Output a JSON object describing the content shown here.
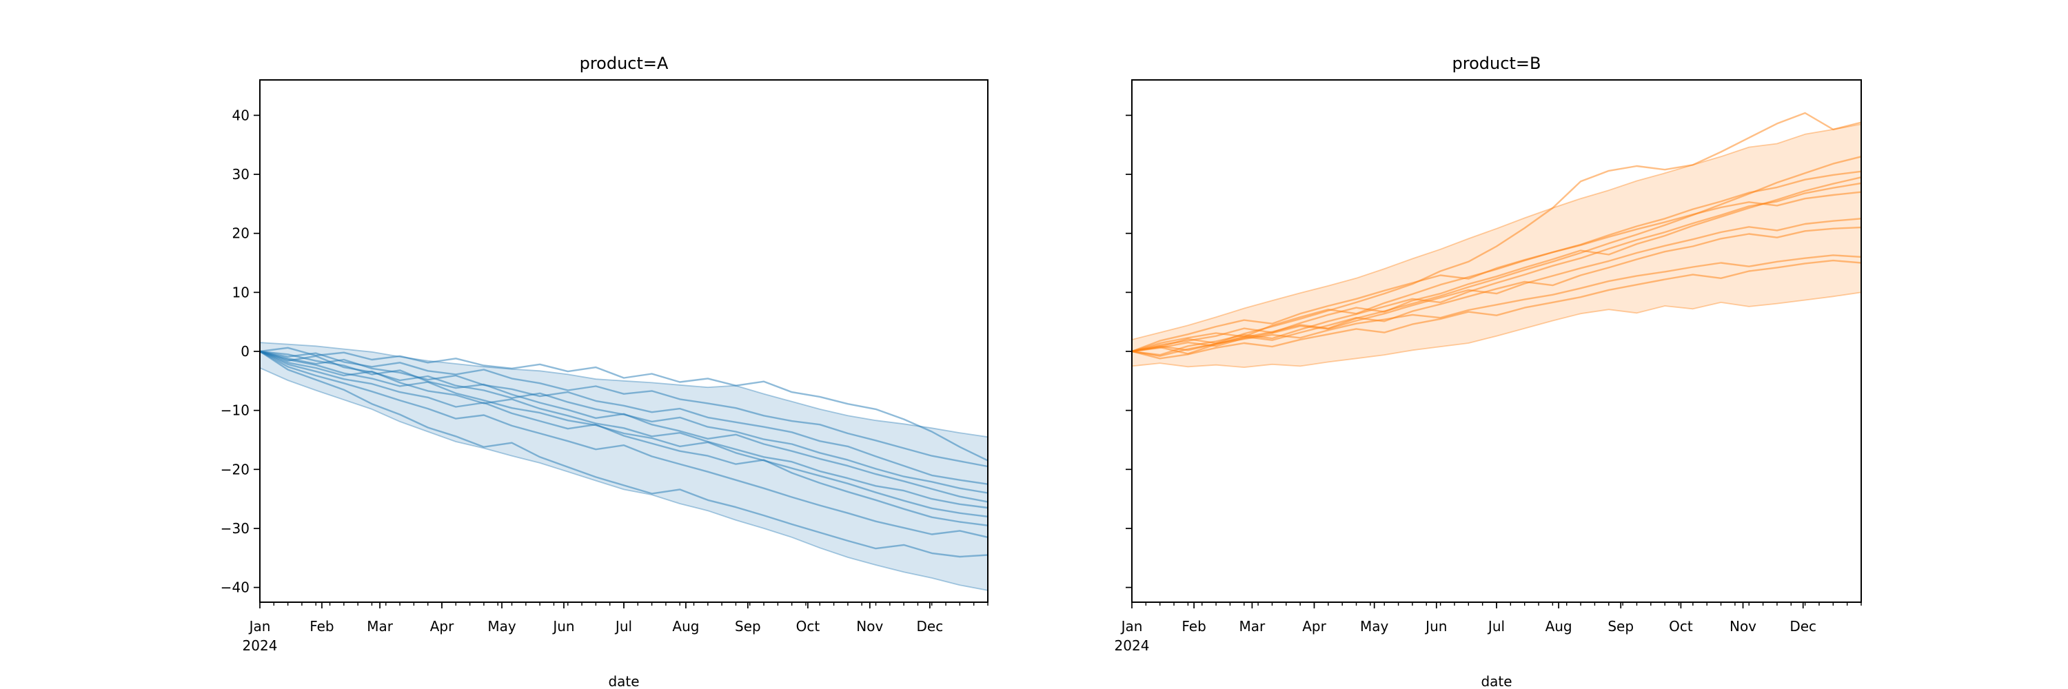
{
  "figure": {
    "background": "#ffffff",
    "n_facets": 2,
    "shared_y_axis": true
  },
  "chart_data": [
    {
      "type": "line",
      "title": "product=A",
      "xlabel": "date",
      "x_axis": {
        "unit": "date",
        "year_label": "2024",
        "month_tick_labels": [
          "Jan",
          "Feb",
          "Mar",
          "Apr",
          "May",
          "Jun",
          "Jul",
          "Aug",
          "Sep",
          "Oct",
          "Nov",
          "Dec"
        ],
        "month_tick_days": [
          0,
          31,
          60,
          91,
          121,
          152,
          182,
          213,
          244,
          274,
          305,
          335
        ],
        "minor_tick_step_days": 7,
        "x_max_day": 364
      },
      "y_axis": {
        "tick_values": [
          40,
          30,
          20,
          10,
          0,
          -10,
          -20,
          -30,
          -40
        ],
        "tick_labels": [
          "40",
          "30",
          "20",
          "10",
          "0",
          "−10",
          "−20",
          "−30",
          "−40"
        ],
        "ylim": [
          -42.5,
          46.0
        ],
        "show_tick_labels": true
      },
      "color": {
        "base": "#1f77b4",
        "line": "rgba(31,119,180,0.5)",
        "band_fill": "rgba(31,119,180,0.18)",
        "band_edge": "rgba(31,119,180,0.38)"
      },
      "x_days": [
        0,
        14,
        28,
        42,
        56,
        70,
        84,
        98,
        112,
        126,
        140,
        154,
        168,
        182,
        196,
        210,
        224,
        238,
        252,
        266,
        280,
        294,
        308,
        322,
        336,
        350,
        364
      ],
      "band": {
        "upper": [
          1.5,
          1.2,
          0.9,
          0.4,
          -0.1,
          -0.9,
          -1.6,
          -2.1,
          -2.6,
          -3.0,
          -3.3,
          -3.9,
          -4.7,
          -5.0,
          -5.3,
          -5.7,
          -6.1,
          -5.8,
          -7.2,
          -8.5,
          -9.8,
          -10.9,
          -11.7,
          -12.3,
          -13.0,
          -13.8,
          -14.5
        ],
        "lower": [
          -2.8,
          -4.9,
          -6.6,
          -8.2,
          -9.8,
          -11.9,
          -13.6,
          -15.3,
          -16.4,
          -17.7,
          -18.9,
          -20.4,
          -21.9,
          -23.4,
          -24.3,
          -25.8,
          -27.0,
          -28.6,
          -30.0,
          -31.5,
          -33.3,
          -34.9,
          -36.2,
          -37.4,
          -38.4,
          -39.6,
          -40.5
        ]
      },
      "series": [
        {
          "values": [
            0.0,
            0.6,
            -0.7,
            -0.2,
            -1.4,
            -0.8,
            -1.9,
            -1.2,
            -2.4,
            -2.9,
            -2.2,
            -3.4,
            -2.7,
            -4.5,
            -3.8,
            -5.2,
            -4.6,
            -5.8,
            -5.1,
            -6.9,
            -7.7,
            -8.9,
            -9.8,
            -11.5,
            -13.6,
            -16.2,
            -18.5
          ]
        },
        {
          "values": [
            0.0,
            -0.9,
            -0.3,
            -1.8,
            -2.6,
            -1.9,
            -3.3,
            -3.9,
            -3.1,
            -4.6,
            -5.4,
            -6.6,
            -5.9,
            -7.2,
            -6.7,
            -8.1,
            -8.8,
            -9.6,
            -10.9,
            -11.8,
            -12.4,
            -13.9,
            -15.1,
            -16.4,
            -17.7,
            -18.6,
            -19.5
          ]
        },
        {
          "values": [
            0.0,
            -1.2,
            -2.1,
            -1.4,
            -2.9,
            -3.6,
            -4.8,
            -4.1,
            -5.7,
            -6.4,
            -7.6,
            -6.9,
            -8.4,
            -9.2,
            -10.3,
            -9.7,
            -11.2,
            -12.0,
            -12.8,
            -13.7,
            -15.2,
            -16.1,
            -17.8,
            -19.4,
            -21.0,
            -21.8,
            -22.5
          ]
        },
        {
          "values": [
            0.0,
            -1.6,
            -0.8,
            -2.7,
            -3.5,
            -4.9,
            -4.2,
            -5.8,
            -6.6,
            -7.9,
            -7.1,
            -8.6,
            -9.8,
            -10.7,
            -11.9,
            -11.2,
            -12.8,
            -13.6,
            -14.9,
            -15.7,
            -17.2,
            -18.4,
            -19.9,
            -21.2,
            -22.1,
            -23.2,
            -24.0
          ]
        },
        {
          "values": [
            0.0,
            -0.5,
            -1.6,
            -2.4,
            -3.9,
            -3.2,
            -5.1,
            -6.2,
            -5.6,
            -7.3,
            -8.7,
            -9.9,
            -11.3,
            -10.6,
            -12.4,
            -13.5,
            -14.8,
            -14.1,
            -15.7,
            -16.9,
            -18.2,
            -19.4,
            -20.8,
            -22.0,
            -23.3,
            -24.6,
            -25.5
          ]
        },
        {
          "values": [
            0.0,
            -1.9,
            -2.8,
            -4.1,
            -3.4,
            -5.3,
            -6.7,
            -7.4,
            -8.8,
            -8.1,
            -9.7,
            -10.9,
            -12.2,
            -13.0,
            -14.4,
            -13.8,
            -15.3,
            -16.6,
            -17.9,
            -18.7,
            -20.3,
            -21.5,
            -22.8,
            -23.6,
            -25.0,
            -25.9,
            -26.5
          ]
        },
        {
          "values": [
            0.0,
            -1.4,
            -2.3,
            -3.7,
            -4.6,
            -5.9,
            -5.2,
            -7.1,
            -8.3,
            -9.6,
            -10.4,
            -11.7,
            -12.5,
            -13.9,
            -14.7,
            -16.1,
            -15.4,
            -17.2,
            -18.5,
            -19.8,
            -21.1,
            -22.4,
            -23.9,
            -25.3,
            -26.6,
            -27.4,
            -28.0
          ]
        },
        {
          "values": [
            0.0,
            -2.2,
            -3.4,
            -4.7,
            -5.5,
            -6.9,
            -7.8,
            -9.4,
            -8.7,
            -10.5,
            -11.8,
            -13.1,
            -12.4,
            -14.3,
            -15.6,
            -16.9,
            -17.7,
            -19.1,
            -18.4,
            -20.6,
            -22.3,
            -23.8,
            -25.2,
            -26.7,
            -28.1,
            -28.9,
            -29.5
          ]
        },
        {
          "values": [
            0.0,
            -2.6,
            -4.1,
            -5.4,
            -6.8,
            -8.3,
            -9.7,
            -11.4,
            -10.8,
            -12.6,
            -13.9,
            -15.2,
            -16.6,
            -15.9,
            -17.8,
            -19.1,
            -20.4,
            -21.8,
            -23.2,
            -24.7,
            -26.1,
            -27.4,
            -28.8,
            -29.9,
            -31.0,
            -30.4,
            -31.5
          ]
        },
        {
          "values": [
            0.0,
            -3.1,
            -4.8,
            -6.5,
            -8.9,
            -10.7,
            -12.9,
            -14.4,
            -16.2,
            -15.5,
            -17.9,
            -19.6,
            -21.3,
            -22.7,
            -24.1,
            -23.4,
            -25.2,
            -26.4,
            -27.8,
            -29.3,
            -30.7,
            -32.1,
            -33.4,
            -32.8,
            -34.2,
            -34.8,
            -34.5
          ]
        }
      ]
    },
    {
      "type": "line",
      "title": "product=B",
      "xlabel": "date",
      "x_axis": {
        "unit": "date",
        "year_label": "2024",
        "month_tick_labels": [
          "Jan",
          "Feb",
          "Mar",
          "Apr",
          "May",
          "Jun",
          "Jul",
          "Aug",
          "Sep",
          "Oct",
          "Nov",
          "Dec"
        ],
        "month_tick_days": [
          0,
          31,
          60,
          91,
          121,
          152,
          182,
          213,
          244,
          274,
          305,
          335
        ],
        "minor_tick_step_days": 7,
        "x_max_day": 364
      },
      "y_axis": {
        "tick_values": [
          40,
          30,
          20,
          10,
          0,
          -10,
          -20,
          -30,
          -40
        ],
        "tick_labels": [
          "40",
          "30",
          "20",
          "10",
          "0",
          "−10",
          "−20",
          "−30",
          "−40"
        ],
        "ylim": [
          -42.5,
          46.0
        ],
        "show_tick_labels": false
      },
      "color": {
        "base": "#ff7f0e",
        "line": "rgba(255,127,14,0.5)",
        "band_fill": "rgba(255,127,14,0.18)",
        "band_edge": "rgba(255,127,14,0.38)"
      },
      "x_days": [
        0,
        14,
        28,
        42,
        56,
        70,
        84,
        98,
        112,
        126,
        140,
        154,
        168,
        182,
        196,
        210,
        224,
        238,
        252,
        266,
        280,
        294,
        308,
        322,
        336,
        350,
        364
      ],
      "band": {
        "upper": [
          2.0,
          3.2,
          4.4,
          5.8,
          7.3,
          8.6,
          9.9,
          11.1,
          12.4,
          14.0,
          15.7,
          17.3,
          19.1,
          20.8,
          22.6,
          24.3,
          25.9,
          27.3,
          28.9,
          30.2,
          31.6,
          33.0,
          34.6,
          35.2,
          36.8,
          37.6,
          38.5
        ],
        "lower": [
          -2.5,
          -2.0,
          -2.6,
          -2.3,
          -2.7,
          -2.2,
          -2.5,
          -1.8,
          -1.2,
          -0.6,
          0.2,
          0.8,
          1.4,
          2.6,
          3.9,
          5.2,
          6.4,
          7.1,
          6.5,
          7.7,
          7.2,
          8.3,
          7.6,
          8.1,
          8.7,
          9.3,
          10.0
        ]
      },
      "series": [
        {
          "values": [
            0.0,
            0.8,
            2.1,
            1.4,
            3.0,
            4.2,
            5.5,
            6.9,
            8.3,
            9.8,
            11.4,
            13.6,
            15.2,
            17.8,
            20.9,
            24.3,
            28.8,
            30.6,
            31.4,
            30.8,
            31.6,
            33.8,
            36.2,
            38.6,
            40.4,
            37.6,
            38.8
          ]
        },
        {
          "values": [
            0.0,
            0.7,
            -0.4,
            1.2,
            2.4,
            3.3,
            4.5,
            3.9,
            5.6,
            6.8,
            8.1,
            9.4,
            10.9,
            12.3,
            13.8,
            15.2,
            16.7,
            18.3,
            19.8,
            21.4,
            23.1,
            24.9,
            26.7,
            28.6,
            30.2,
            31.8,
            33.0
          ]
        },
        {
          "values": [
            0.0,
            1.4,
            2.3,
            3.1,
            2.5,
            4.4,
            5.8,
            7.1,
            6.4,
            8.2,
            9.7,
            11.3,
            12.6,
            13.9,
            15.4,
            16.8,
            18.1,
            19.7,
            21.2,
            22.5,
            24.1,
            25.4,
            26.9,
            27.8,
            29.1,
            29.9,
            30.5
          ]
        },
        {
          "values": [
            0.0,
            1.1,
            1.8,
            2.6,
            3.9,
            3.2,
            4.8,
            6.2,
            7.4,
            6.7,
            8.6,
            9.8,
            11.4,
            12.7,
            14.2,
            15.6,
            17.1,
            16.4,
            18.2,
            19.6,
            21.3,
            22.8,
            24.3,
            25.7,
            27.2,
            28.4,
            29.5
          ]
        },
        {
          "values": [
            0.0,
            -0.6,
            0.9,
            1.7,
            2.8,
            2.2,
            3.7,
            5.1,
            6.3,
            7.6,
            8.9,
            8.3,
            10.1,
            11.6,
            13.0,
            14.5,
            15.8,
            17.4,
            18.9,
            20.2,
            21.7,
            23.1,
            24.6,
            25.4,
            26.8,
            27.7,
            28.5
          ]
        },
        {
          "values": [
            0.0,
            1.8,
            2.9,
            4.2,
            5.3,
            4.7,
            6.4,
            7.7,
            8.9,
            10.3,
            11.6,
            12.9,
            12.3,
            14.1,
            15.5,
            16.8,
            18.0,
            19.4,
            20.7,
            21.9,
            23.2,
            24.4,
            25.3,
            24.7,
            25.9,
            26.5,
            27.0
          ]
        },
        {
          "values": [
            0.0,
            0.6,
            1.5,
            0.9,
            2.2,
            3.1,
            4.3,
            3.8,
            5.2,
            6.4,
            7.8,
            9.1,
            10.4,
            9.8,
            11.5,
            12.8,
            14.1,
            15.3,
            16.7,
            17.9,
            19.0,
            20.2,
            21.1,
            20.5,
            21.6,
            22.1,
            22.5
          ]
        },
        {
          "values": [
            0.0,
            -0.8,
            0.4,
            1.3,
            2.5,
            1.9,
            3.2,
            4.4,
            5.7,
            5.1,
            6.8,
            8.0,
            9.3,
            10.6,
            11.8,
            11.2,
            12.9,
            14.2,
            15.6,
            16.9,
            17.8,
            19.1,
            19.9,
            19.3,
            20.4,
            20.8,
            21.0
          ]
        },
        {
          "values": [
            0.0,
            0.9,
            0.2,
            1.3,
            2.1,
            2.8,
            2.3,
            3.6,
            4.7,
            5.4,
            6.2,
            5.7,
            7.0,
            7.9,
            8.8,
            9.6,
            10.7,
            11.9,
            12.8,
            13.5,
            14.3,
            15.0,
            14.4,
            15.2,
            15.8,
            16.3,
            16.0
          ]
        },
        {
          "values": [
            0.0,
            -1.2,
            -0.5,
            0.6,
            1.4,
            0.8,
            2.0,
            2.9,
            3.8,
            3.2,
            4.6,
            5.5,
            6.7,
            6.1,
            7.4,
            8.3,
            9.2,
            10.4,
            11.3,
            12.2,
            13.0,
            12.4,
            13.6,
            14.2,
            14.9,
            15.4,
            15.0
          ]
        }
      ]
    }
  ]
}
